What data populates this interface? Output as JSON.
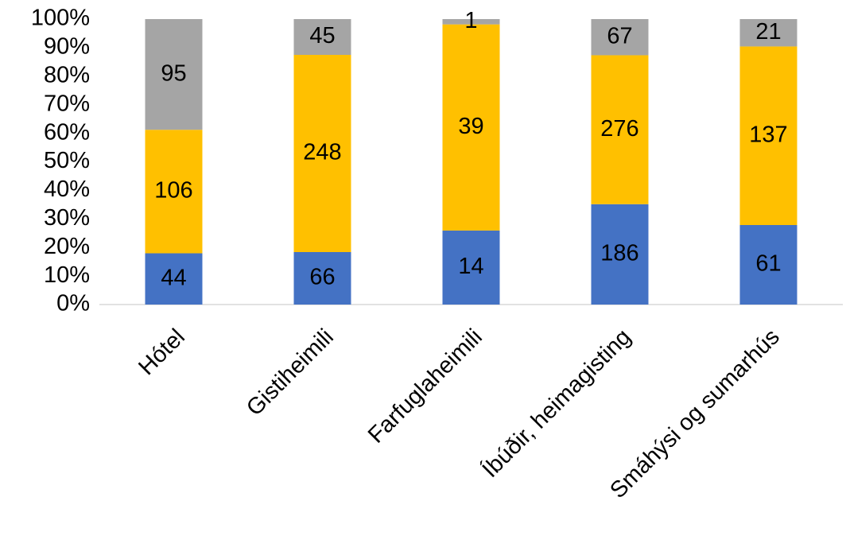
{
  "chart_data": {
    "type": "bar",
    "stack": "percent",
    "categories": [
      "Hótel",
      "Gistiheimili",
      "Farfuglaheimili",
      "Íbúðir, heimagisting",
      "Smáhýsi og sumarhús"
    ],
    "series": [
      {
        "color": "#4472c4",
        "values": [
          44,
          66,
          14,
          186,
          61
        ]
      },
      {
        "color": "#ffc000",
        "values": [
          106,
          248,
          39,
          276,
          137
        ]
      },
      {
        "color": "#a5a5a5",
        "values": [
          95,
          45,
          1,
          67,
          21
        ]
      }
    ],
    "ylim": [
      0,
      100
    ],
    "yticks": [
      {
        "value": 0,
        "label": "0%"
      },
      {
        "value": 10,
        "label": "10%"
      },
      {
        "value": 20,
        "label": "20%"
      },
      {
        "value": 30,
        "label": "30%"
      },
      {
        "value": 40,
        "label": "40%"
      },
      {
        "value": 50,
        "label": "50%"
      },
      {
        "value": 60,
        "label": "60%"
      },
      {
        "value": 70,
        "label": "70%"
      },
      {
        "value": 80,
        "label": "80%"
      },
      {
        "value": 90,
        "label": "90%"
      },
      {
        "value": 100,
        "label": "100%"
      }
    ],
    "grid": false
  }
}
